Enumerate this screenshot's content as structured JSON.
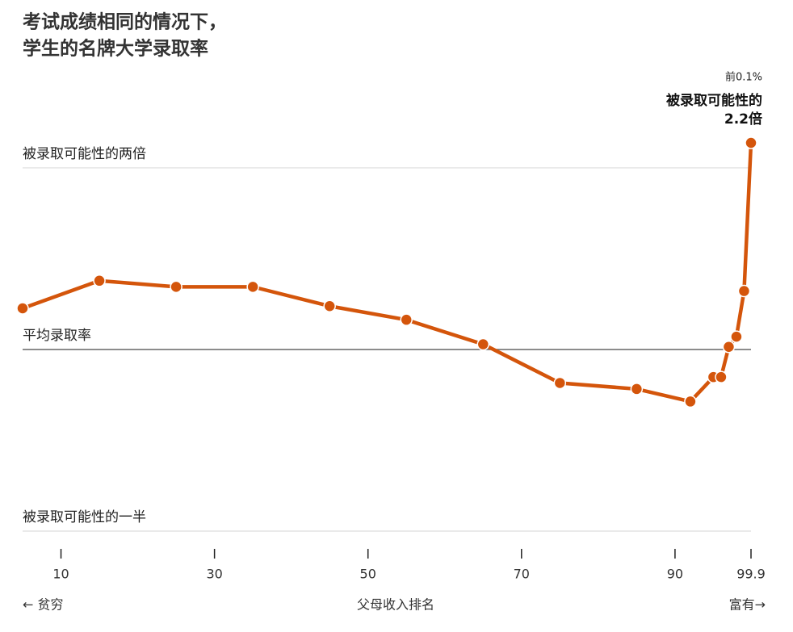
{
  "chart_data": {
    "type": "line",
    "title": [
      "考试成绩相同的情况下，",
      "学生的名牌大学录取率"
    ],
    "x_label": "父母收入排名",
    "x_left_label": "← 贫穷",
    "x_right_label": "富有→",
    "annotation": {
      "top": "前0.1%",
      "line1": "被录取可能性的",
      "line2": "2.2倍"
    },
    "x": [
      5,
      15,
      25,
      35,
      45,
      55,
      65,
      75,
      85,
      92,
      95,
      96,
      97,
      98,
      99,
      99.9
    ],
    "series": [
      {
        "name": "录取率",
        "color": "#d4550b",
        "values": [
          1.17,
          1.3,
          1.27,
          1.27,
          1.18,
          1.12,
          1.02,
          0.88,
          0.86,
          0.82,
          0.9,
          0.9,
          1.01,
          1.05,
          1.25,
          2.2
        ]
      }
    ],
    "xlim": [
      5,
      99.9
    ],
    "xticks": [
      10,
      30,
      50,
      70,
      90,
      99.9
    ],
    "ylim": [
      0.5,
      2.2
    ],
    "ylog": true,
    "yticks": [
      {
        "value": 2,
        "label": "被录取可能性的两倍"
      },
      {
        "value": 1,
        "label": "平均录取率"
      },
      {
        "value": 0.5,
        "label": "被录取可能性的一半"
      }
    ],
    "baseline": 1,
    "grid": true
  }
}
